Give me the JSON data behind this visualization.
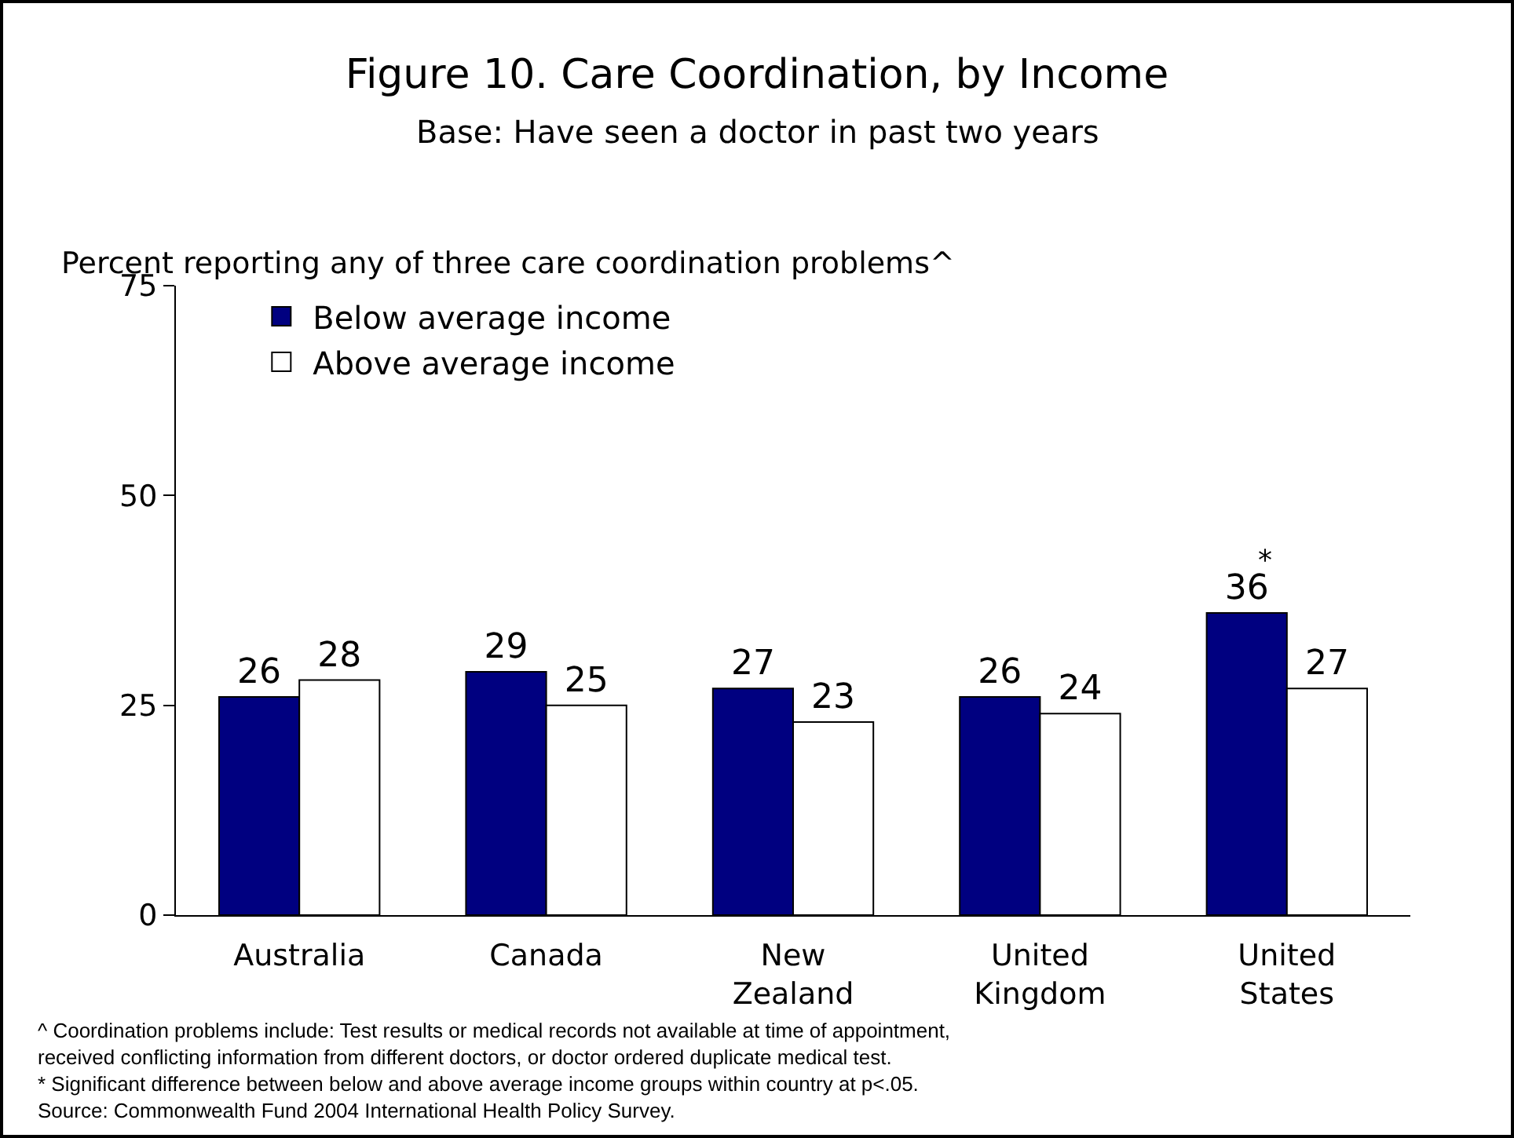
{
  "chart_data": {
    "type": "bar",
    "title": "Figure 10. Care Coordination, by Income",
    "subtitle": "Base: Have seen a doctor in past two years",
    "ylabel": "Percent reporting any of three care coordination problems^",
    "categories": [
      "Australia",
      "Canada",
      "New Zealand",
      "United Kingdom",
      "United States"
    ],
    "series": [
      {
        "name": "Below average income",
        "color": "#000080",
        "values": [
          26,
          29,
          27,
          26,
          36
        ]
      },
      {
        "name": "Above average income",
        "color": "#ffffff",
        "values": [
          28,
          25,
          23,
          24,
          27
        ]
      }
    ],
    "ylim": [
      0,
      75
    ],
    "yticks": [
      0,
      25,
      50,
      75
    ],
    "data_labels": true,
    "legend": "top",
    "annotations": [
      {
        "text": "*",
        "x": "United States",
        "y": 36
      },
      "^ Coordination problems include: Test results or medical records not available at time of appointment,",
      "received conflicting information from different doctors, or doctor ordered duplicate medical test.",
      "* Significant difference between below and above average income groups within country at p<.05.",
      "Source: Commonwealth Fund 2004 International Health Policy Survey."
    ]
  }
}
